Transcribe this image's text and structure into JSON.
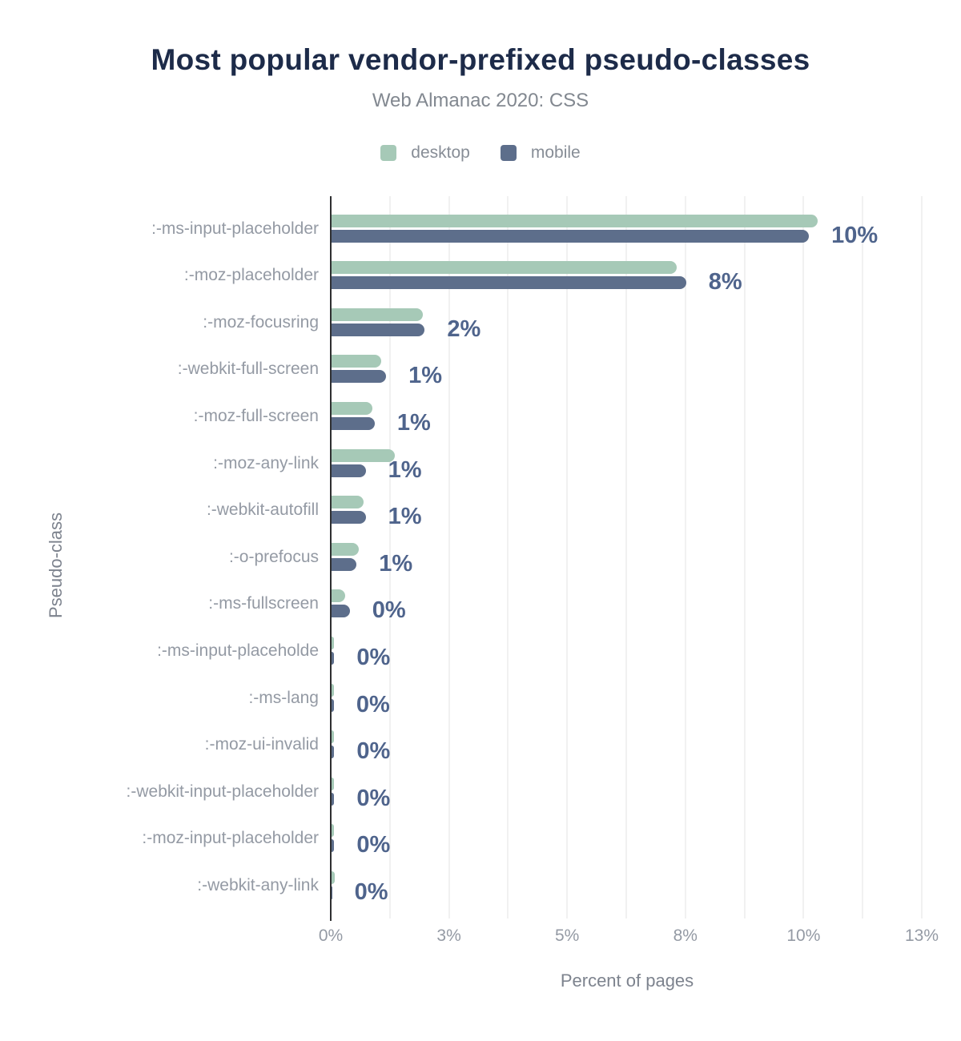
{
  "header": {
    "title": "Most popular vendor-prefixed pseudo-classes",
    "subtitle": "Web Almanac 2020: CSS"
  },
  "legend": {
    "items": [
      {
        "label": "desktop",
        "color": "#a6c9b7"
      },
      {
        "label": "mobile",
        "color": "#5d6e8b"
      }
    ]
  },
  "axes": {
    "x_title": "Percent of pages",
    "y_title": "Pseudo-class"
  },
  "colors": {
    "title": "#1d2b49",
    "subtitle": "#828890",
    "desktop_bar": "#a6c9b7",
    "mobile_bar": "#5d6e8b",
    "value_label": "#4f648c",
    "category_label": "#949aa4",
    "tick_label": "#949aa4",
    "axis_title": "#7d838e",
    "gridline": "#f1f1f1",
    "axis_line": "#2e2f31"
  },
  "chart_data": {
    "type": "bar",
    "orientation": "horizontal",
    "title": "Most popular vendor-prefixed pseudo-classes",
    "subtitle": "Web Almanac 2020: CSS",
    "xlabel": "Percent of pages",
    "ylabel": "Pseudo-class",
    "xlim": [
      0,
      13
    ],
    "grid": true,
    "grid_divisions": 10,
    "legend_position": "top",
    "x_ticks": [
      {
        "label": "0%",
        "value": 0
      },
      {
        "label": "3%",
        "value": 2.6
      },
      {
        "label": "5%",
        "value": 5.2
      },
      {
        "label": "8%",
        "value": 7.8
      },
      {
        "label": "10%",
        "value": 10.4
      },
      {
        "label": "13%",
        "value": 13
      }
    ],
    "categories": [
      ":-ms-input-placeholder",
      ":-moz-placeholder",
      ":-moz-focusring",
      ":-webkit-full-screen",
      ":-moz-full-screen",
      ":-moz-any-link",
      ":-webkit-autofill",
      ":-o-prefocus",
      ":-ms-fullscreen",
      ":-ms-input-placeholde",
      ":-ms-lang",
      ":-moz-ui-invalid",
      ":-webkit-input-placeholder",
      ":-moz-input-placeholder",
      ":-webkit-any-link"
    ],
    "series": [
      {
        "name": "desktop",
        "values": [
          10.7,
          7.6,
          2.0,
          1.1,
          0.9,
          1.4,
          0.7,
          0.6,
          0.3,
          0.05,
          0.05,
          0.05,
          0.05,
          0.05,
          0.07
        ]
      },
      {
        "name": "mobile",
        "values": [
          10.5,
          7.8,
          2.05,
          1.2,
          0.95,
          0.75,
          0.75,
          0.55,
          0.4,
          0.06,
          0.05,
          0.06,
          0.06,
          0.06,
          0.01
        ]
      }
    ],
    "value_labels": [
      "10%",
      "8%",
      "2%",
      "1%",
      "1%",
      "1%",
      "1%",
      "1%",
      "0%",
      "0%",
      "0%",
      "0%",
      "0%",
      "0%",
      "0%"
    ]
  }
}
